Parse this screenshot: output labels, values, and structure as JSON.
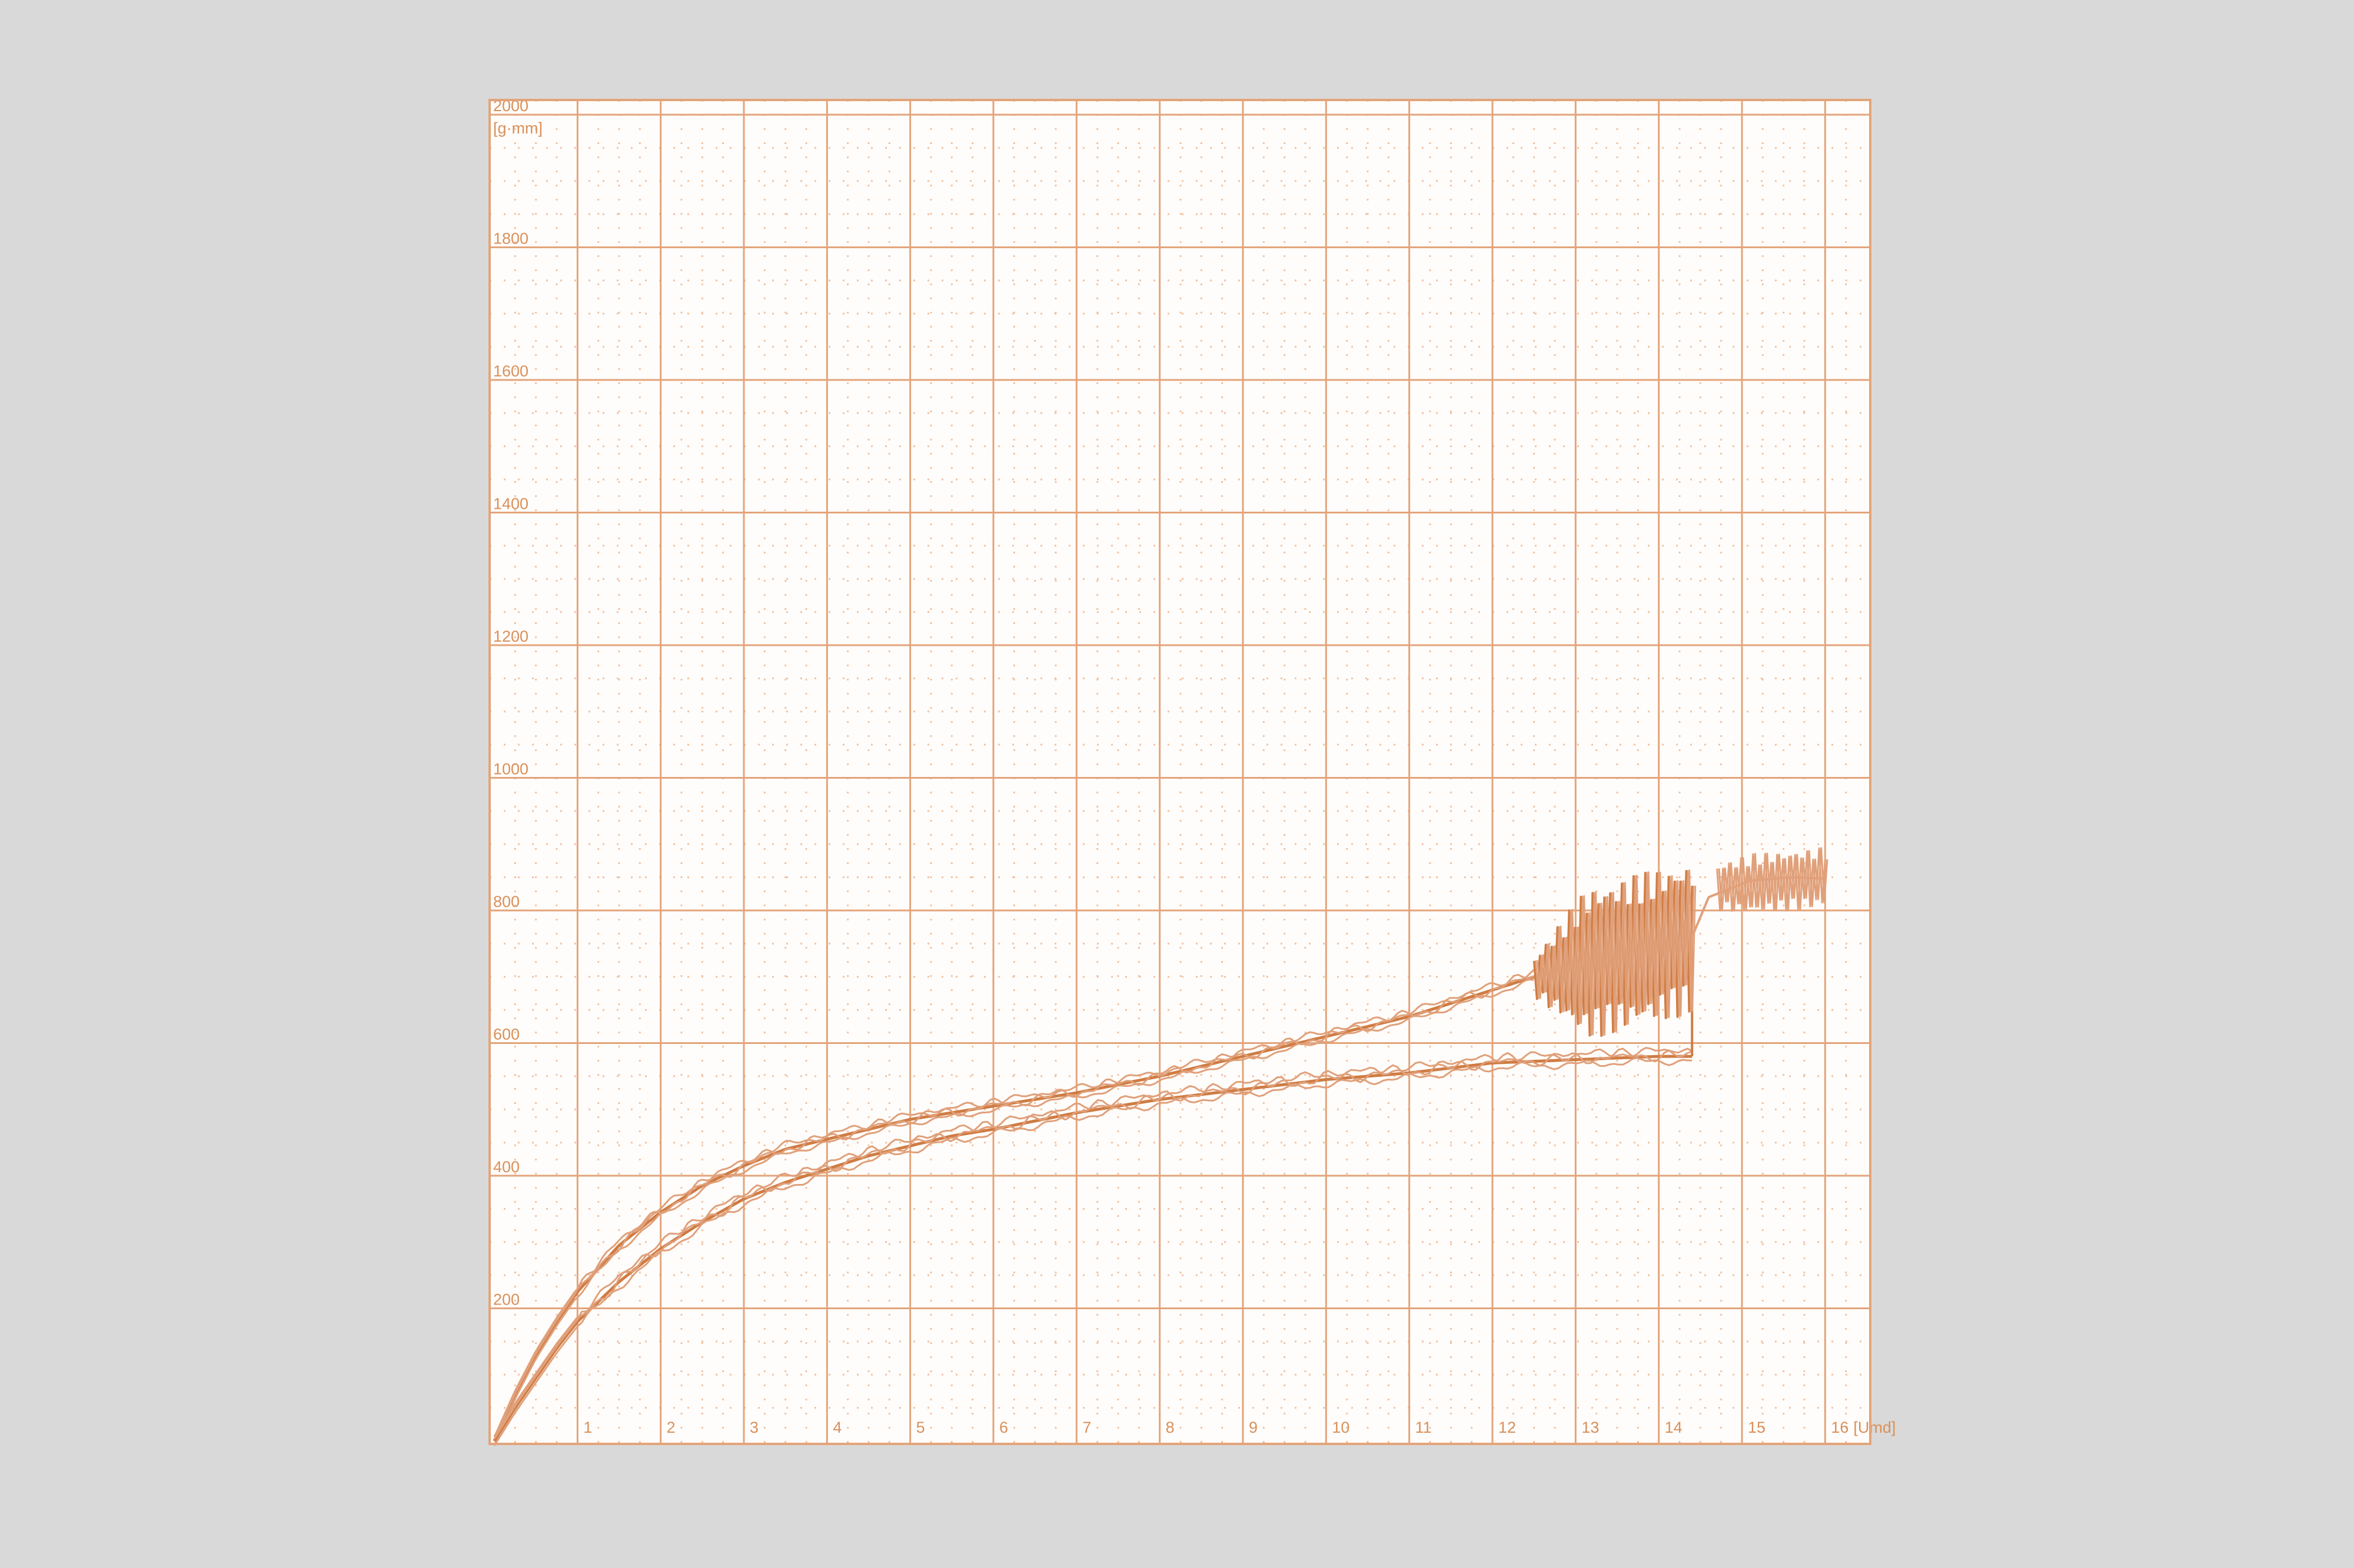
{
  "chart_data": {
    "type": "line",
    "title": "",
    "xlabel": "",
    "ylabel": "",
    "x_unit_label": "[Umd]",
    "y_unit_label": "[g·mm]",
    "xlim": [
      0,
      16.5
    ],
    "ylim": [
      0,
      2000
    ],
    "x_ticks": [
      "1",
      "2",
      "3",
      "4",
      "5",
      "6",
      "7",
      "8",
      "9",
      "10",
      "11",
      "12",
      "13",
      "14",
      "15",
      "16"
    ],
    "y_ticks": [
      "200",
      "400",
      "600",
      "800",
      "1000",
      "1200",
      "1400",
      "1600",
      "1800",
      "2000"
    ],
    "grid": true,
    "legend": "none",
    "colors": {
      "background": "#d9d9d9",
      "paper": "#fffdfb",
      "grid_major": "#e3a47a",
      "grid_minor": "#f0c3a4",
      "trace": "#cf7c43",
      "trace_light": "#e0a07a"
    },
    "series": [
      {
        "x": [
          0,
          0.25,
          0.5,
          0.75,
          1,
          1.5,
          2,
          2.5,
          3,
          3.5,
          4,
          4.5,
          5,
          5.5,
          6,
          7,
          8,
          9,
          10,
          11,
          11.5,
          12,
          12.5
        ],
        "values": [
          0,
          70,
          130,
          180,
          225,
          295,
          345,
          385,
          415,
          440,
          455,
          470,
          485,
          495,
          505,
          525,
          550,
          580,
          610,
          640,
          660,
          680,
          700
        ]
      },
      {
        "x": [
          0,
          0.25,
          0.5,
          0.75,
          1,
          1.5,
          2,
          2.5,
          3,
          3.5,
          4,
          4.5,
          5,
          5.5,
          6,
          7,
          8,
          9,
          10,
          11,
          12,
          13,
          14,
          14.4
        ],
        "values": [
          0,
          50,
          95,
          140,
          180,
          240,
          290,
          330,
          365,
          390,
          410,
          430,
          445,
          460,
          470,
          495,
          515,
          530,
          545,
          555,
          570,
          575,
          580,
          580
        ]
      },
      {
        "x": [
          12.5,
          14.4
        ],
        "values": [
          700,
          760
        ],
        "oscillation": [
          30,
          115
        ]
      },
      {
        "x": [
          14.4,
          14.6,
          15.1,
          15.6,
          16
        ],
        "values": [
          760,
          820,
          845,
          850,
          848
        ],
        "oscillation": [
          0,
          40
        ]
      }
    ]
  }
}
